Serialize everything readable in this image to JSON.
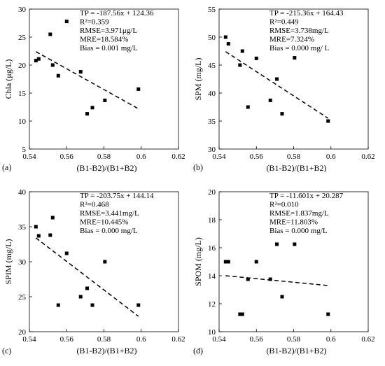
{
  "chart_data": [
    {
      "type": "scatter",
      "panel_label": "(a)",
      "xlabel": "(B1-B2)/(B1+B2)",
      "ylabel": "Chla (μg/L)",
      "xlim": [
        0.54,
        0.62
      ],
      "ylim": [
        5,
        30
      ],
      "xticks": [
        "0.54",
        "0.56",
        "0.58",
        "0.6",
        "0.62"
      ],
      "yticks": [
        "5",
        "10",
        "15",
        "20",
        "25",
        "30"
      ],
      "annotations": [
        "TP = -187.56x + 124.36",
        "R²=0.359",
        "RMSE=3.971μg/L",
        "MRE=18.584%",
        "Bias = 0.001 mg/L"
      ],
      "points": [
        {
          "x": 0.5435,
          "y": 20.8
        },
        {
          "x": 0.545,
          "y": 21.1
        },
        {
          "x": 0.5512,
          "y": 25.5
        },
        {
          "x": 0.5525,
          "y": 20.0
        },
        {
          "x": 0.5555,
          "y": 18.1
        },
        {
          "x": 0.56,
          "y": 27.8
        },
        {
          "x": 0.5675,
          "y": 18.8
        },
        {
          "x": 0.571,
          "y": 11.3
        },
        {
          "x": 0.5738,
          "y": 12.4
        },
        {
          "x": 0.5805,
          "y": 13.7
        },
        {
          "x": 0.5985,
          "y": 15.7
        }
      ],
      "fit_line": {
        "x": [
          0.5435,
          0.5985
        ],
        "y": [
          22.4,
          12.2
        ]
      }
    },
    {
      "type": "scatter",
      "panel_label": "(b)",
      "xlabel": "(B1-B2)/(B1+B2)",
      "ylabel": "SPM (mg/L)",
      "xlim": [
        0.54,
        0.62
      ],
      "ylim": [
        30,
        55
      ],
      "xticks": [
        "0.54",
        "0.56",
        "0.58",
        "0.6",
        "0.62"
      ],
      "yticks": [
        "30",
        "35",
        "40",
        "45",
        "50",
        "55"
      ],
      "annotations": [
        "TP = -215.36x + 164.43",
        "R²=0.449",
        "RMSE=3.738mg/L",
        "MRE=7.324%",
        "Bias = 0.000 mg/ L"
      ],
      "points": [
        {
          "x": 0.5435,
          "y": 50.0
        },
        {
          "x": 0.545,
          "y": 48.8
        },
        {
          "x": 0.5512,
          "y": 45.0
        },
        {
          "x": 0.5525,
          "y": 47.5
        },
        {
          "x": 0.5555,
          "y": 37.5
        },
        {
          "x": 0.56,
          "y": 46.2
        },
        {
          "x": 0.5675,
          "y": 38.7
        },
        {
          "x": 0.571,
          "y": 42.5
        },
        {
          "x": 0.5738,
          "y": 36.3
        },
        {
          "x": 0.5805,
          "y": 46.3
        },
        {
          "x": 0.5985,
          "y": 35.0
        }
      ],
      "fit_line": {
        "x": [
          0.5435,
          0.5985
        ],
        "y": [
          47.4,
          35.5
        ]
      }
    },
    {
      "type": "scatter",
      "panel_label": "(c)",
      "xlabel": "(B1-B2)/(B1+B2)",
      "ylabel": "SPIM (mg/L)",
      "xlim": [
        0.54,
        0.62
      ],
      "ylim": [
        20,
        40
      ],
      "xticks": [
        "0.54",
        "0.56",
        "0.58",
        "0.6",
        "0.62"
      ],
      "yticks": [
        "20",
        "25",
        "30",
        "35",
        "40"
      ],
      "annotations": [
        "TP = -203.75x + 144.14",
        "R²=0.468",
        "RMSE=3.441mg/L",
        "MRE=10.445%",
        "Bias = 0.000 mg/L"
      ],
      "points": [
        {
          "x": 0.5435,
          "y": 35.0
        },
        {
          "x": 0.545,
          "y": 33.7
        },
        {
          "x": 0.5512,
          "y": 33.8
        },
        {
          "x": 0.5525,
          "y": 36.3
        },
        {
          "x": 0.5555,
          "y": 23.8
        },
        {
          "x": 0.56,
          "y": 31.2
        },
        {
          "x": 0.5675,
          "y": 25.0
        },
        {
          "x": 0.571,
          "y": 26.2
        },
        {
          "x": 0.5738,
          "y": 23.8
        },
        {
          "x": 0.5805,
          "y": 30.0
        },
        {
          "x": 0.5985,
          "y": 23.8
        }
      ],
      "fit_line": {
        "x": [
          0.5435,
          0.5985
        ],
        "y": [
          33.4,
          22.2
        ]
      }
    },
    {
      "type": "scatter",
      "panel_label": "(d)",
      "xlabel": "(B1-B2)/(B1+B2)",
      "ylabel": "SPOM (mg/L)",
      "xlim": [
        0.54,
        0.62
      ],
      "ylim": [
        10,
        20
      ],
      "xticks": [
        "0.54",
        "0.56",
        "0.58",
        "0.6",
        "0.62"
      ],
      "yticks": [
        "10",
        "12",
        "14",
        "16",
        "18",
        "20"
      ],
      "annotations": [
        "TP = -11.601x + 20.287",
        "R²=0.010",
        "RMSE=1.837mg/L",
        "MRE=11.803%",
        "Bias = 0.000 mg/L"
      ],
      "points": [
        {
          "x": 0.5435,
          "y": 15.0
        },
        {
          "x": 0.545,
          "y": 15.0
        },
        {
          "x": 0.5512,
          "y": 11.25
        },
        {
          "x": 0.5525,
          "y": 11.25
        },
        {
          "x": 0.5555,
          "y": 13.75
        },
        {
          "x": 0.56,
          "y": 15.0
        },
        {
          "x": 0.5675,
          "y": 13.75
        },
        {
          "x": 0.571,
          "y": 16.25
        },
        {
          "x": 0.5738,
          "y": 12.5
        },
        {
          "x": 0.5805,
          "y": 16.25
        },
        {
          "x": 0.5985,
          "y": 11.25
        }
      ],
      "fit_line": {
        "x": [
          0.5435,
          0.5985
        ],
        "y": [
          14.0,
          13.3
        ]
      }
    }
  ]
}
